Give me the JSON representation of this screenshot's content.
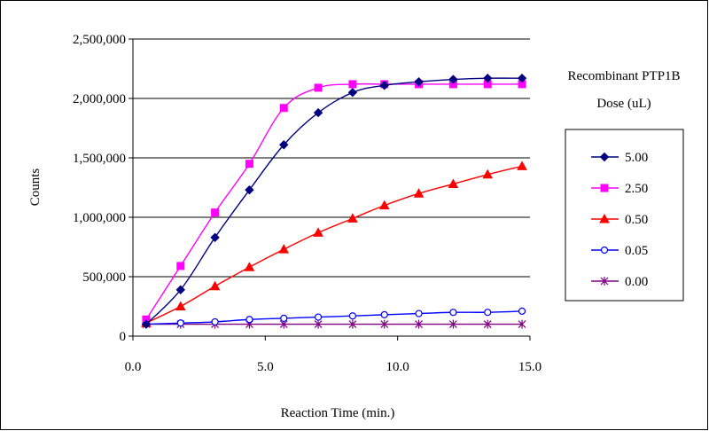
{
  "chart_data": {
    "type": "line",
    "title": "",
    "xlabel": "Reaction Time (min.)",
    "ylabel": "Counts",
    "xlim": [
      0,
      15
    ],
    "ylim": [
      0,
      2500000
    ],
    "x_ticks": [
      0,
      5,
      10,
      15
    ],
    "x_tick_labels": [
      "0.0",
      "5.0",
      "10.0",
      "15.0"
    ],
    "y_ticks": [
      0,
      500000,
      1000000,
      1500000,
      2000000,
      2500000
    ],
    "y_tick_labels": [
      "0",
      "500,000",
      "1,000,000",
      "1,500,000",
      "2,000,000",
      "2,500,000"
    ],
    "grid": "horizontal",
    "legend_title": [
      "Recombinant PTP1B",
      "Dose (uL)"
    ],
    "legend_position": "right",
    "x": [
      0.5,
      1.8,
      3.1,
      4.4,
      5.7,
      7.0,
      8.3,
      9.5,
      10.8,
      12.1,
      13.4,
      14.7
    ],
    "series": [
      {
        "name": "5.00",
        "color": "#000080",
        "marker": "diamond",
        "values": [
          100000,
          390000,
          830000,
          1230000,
          1610000,
          1880000,
          2050000,
          2110000,
          2140000,
          2160000,
          2170000,
          2170000
        ]
      },
      {
        "name": "2.50",
        "color": "#ff00ff",
        "marker": "square",
        "values": [
          140000,
          590000,
          1040000,
          1450000,
          1920000,
          2090000,
          2120000,
          2120000,
          2120000,
          2120000,
          2120000,
          2120000
        ]
      },
      {
        "name": "0.50",
        "color": "#ff0000",
        "marker": "triangle",
        "values": [
          110000,
          250000,
          420000,
          580000,
          730000,
          870000,
          990000,
          1100000,
          1200000,
          1280000,
          1360000,
          1430000
        ]
      },
      {
        "name": "0.05",
        "color": "#0000ff",
        "marker": "circle",
        "values": [
          100000,
          110000,
          120000,
          140000,
          150000,
          160000,
          170000,
          180000,
          190000,
          200000,
          200000,
          210000
        ]
      },
      {
        "name": "0.00",
        "color": "#800080",
        "marker": "star",
        "values": [
          100000,
          100000,
          100000,
          100000,
          100000,
          100000,
          100000,
          100000,
          100000,
          100000,
          100000,
          100000
        ]
      }
    ]
  }
}
